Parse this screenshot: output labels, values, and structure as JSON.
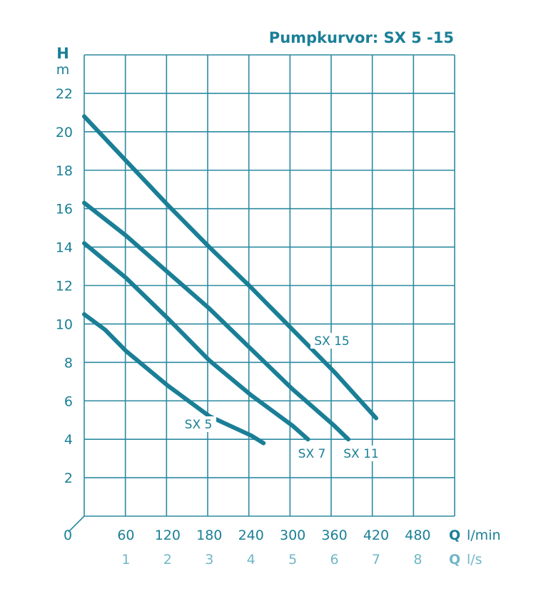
{
  "chart_data": {
    "type": "line",
    "title": "Pumpkurvor: SX 5 -15",
    "y_axis": {
      "symbol": "H",
      "unit": "m",
      "ticks": [
        "2",
        "4",
        "6",
        "8",
        "10",
        "12",
        "14",
        "16",
        "18",
        "20",
        "22"
      ],
      "range": [
        0,
        24
      ]
    },
    "x_axis": {
      "symbol": "Q",
      "unit": "l/min",
      "origin_label": "0",
      "ticks": [
        "60",
        "120",
        "180",
        "240",
        "300",
        "360",
        "420",
        "480"
      ],
      "range": [
        0,
        533
      ]
    },
    "x_axis_secondary": {
      "symbol": "Q",
      "unit": "l/s",
      "ticks": [
        "1",
        "2",
        "3",
        "4",
        "5",
        "6",
        "7",
        "8"
      ]
    },
    "grid": true,
    "series": [
      {
        "name": "SX 5",
        "points": [
          [
            0,
            10.5
          ],
          [
            30,
            9.7
          ],
          [
            60,
            8.6
          ],
          [
            120,
            6.8
          ],
          [
            180,
            5.2
          ],
          [
            240,
            4.2
          ],
          [
            258,
            3.8
          ]
        ]
      },
      {
        "name": "SX 7",
        "points": [
          [
            0,
            14.2
          ],
          [
            60,
            12.4
          ],
          [
            120,
            10.3
          ],
          [
            180,
            8.1
          ],
          [
            240,
            6.3
          ],
          [
            300,
            4.7
          ],
          [
            322,
            4.0
          ]
        ]
      },
      {
        "name": "SX 11",
        "points": [
          [
            0,
            16.3
          ],
          [
            60,
            14.6
          ],
          [
            120,
            12.7
          ],
          [
            180,
            10.8
          ],
          [
            240,
            8.7
          ],
          [
            300,
            6.6
          ],
          [
            360,
            4.7
          ],
          [
            380,
            4.0
          ]
        ]
      },
      {
        "name": "SX 15",
        "points": [
          [
            0,
            20.8
          ],
          [
            60,
            18.5
          ],
          [
            120,
            16.2
          ],
          [
            180,
            14.0
          ],
          [
            240,
            11.9
          ],
          [
            300,
            9.7
          ],
          [
            360,
            7.5
          ],
          [
            420,
            5.1
          ]
        ]
      }
    ],
    "colors": {
      "ink": "#1a7f96",
      "grid": "#2b8aa0",
      "secondary": "#6fb7c7"
    }
  }
}
